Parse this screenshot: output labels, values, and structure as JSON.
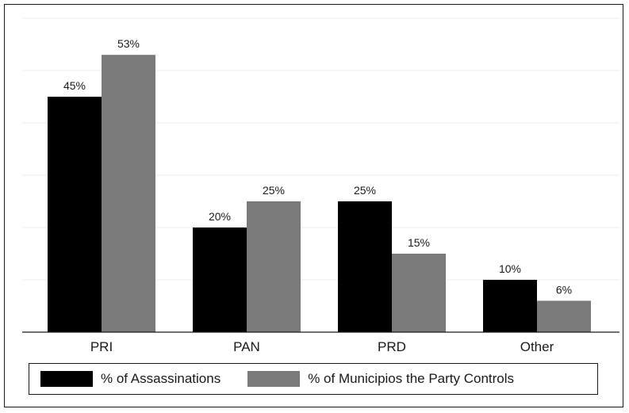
{
  "chart_data": {
    "type": "bar",
    "title": "",
    "xlabel": "",
    "ylabel": "",
    "categories": [
      "PRI",
      "PAN",
      "PRD",
      "Other"
    ],
    "series": [
      {
        "name": "% of Assassinations",
        "values": [
          45,
          20,
          25,
          10
        ],
        "labels": [
          "45%",
          "20%",
          "25%",
          "10%"
        ],
        "color": "#000000"
      },
      {
        "name": "% of Municipios the Party Controls",
        "values": [
          53,
          25,
          15,
          6
        ],
        "labels": [
          "53%",
          "25%",
          "15%",
          "6%"
        ],
        "color": "#7a7a7a"
      }
    ],
    "ylim": [
      0,
      60
    ],
    "grid": true,
    "legend_position": "bottom"
  }
}
